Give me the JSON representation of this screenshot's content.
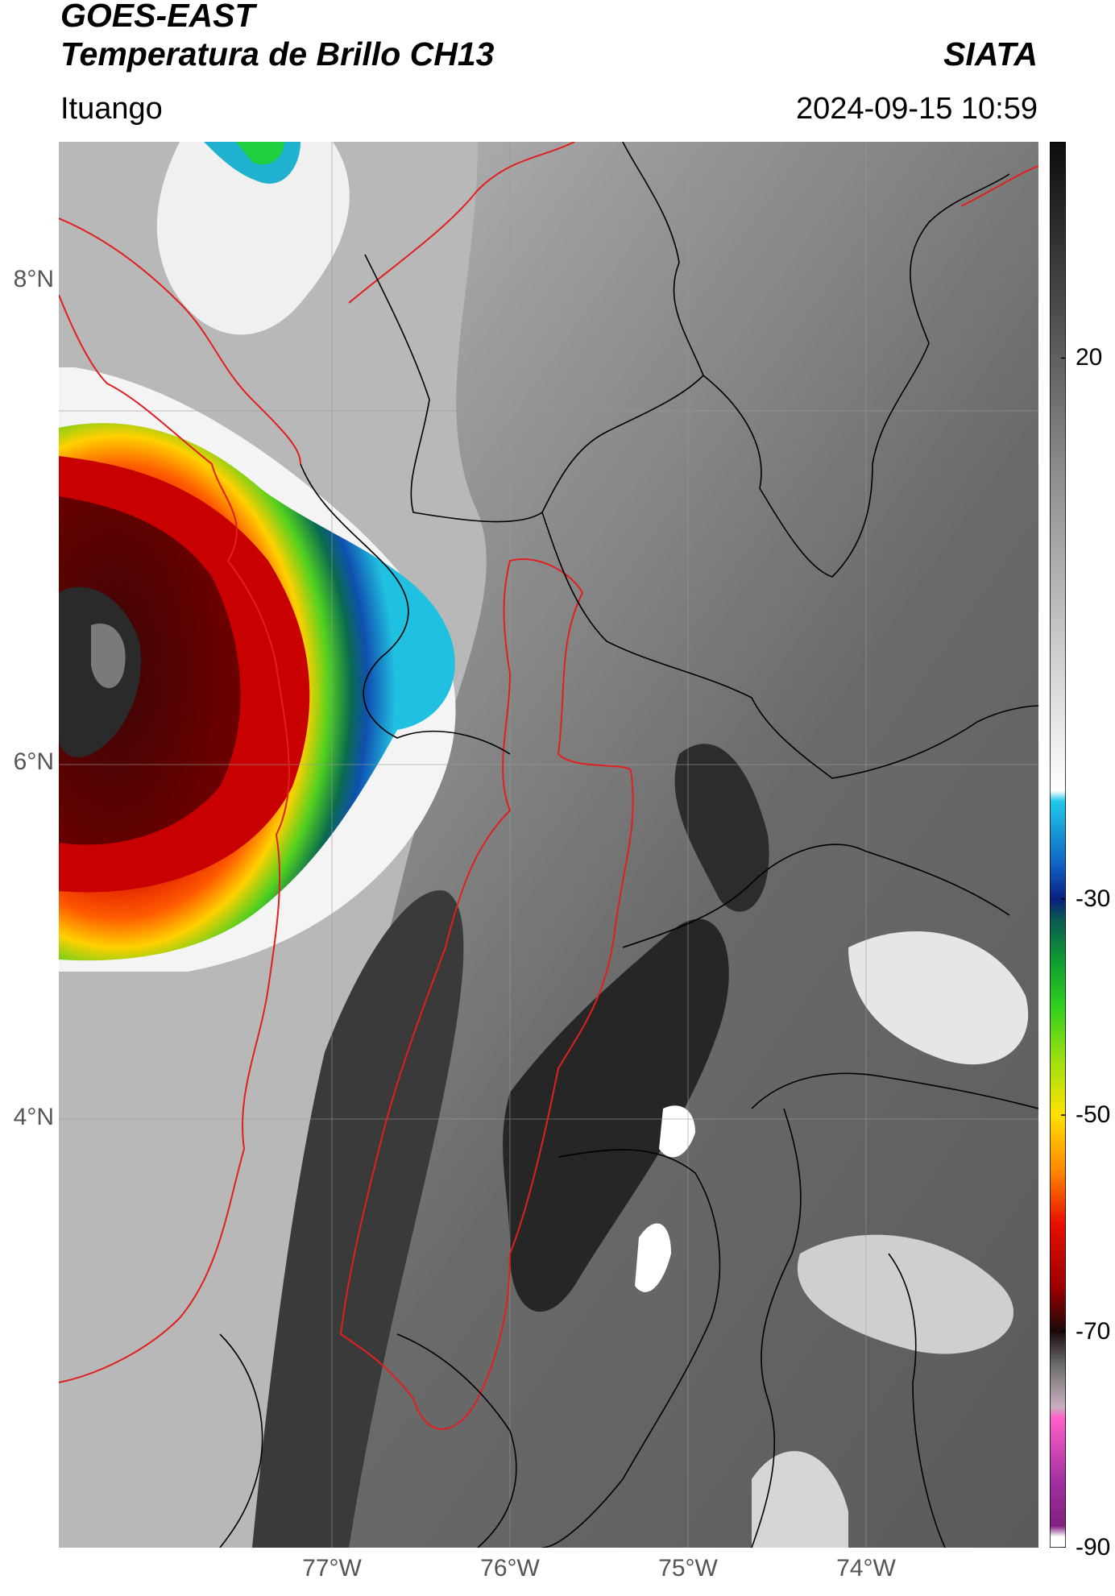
{
  "header": {
    "title_line1": "GOES-EAST",
    "title_line2": "Temperatura de Brillo CH13",
    "organization": "SIATA",
    "location": "Ituango",
    "datetime": "2024-09-15 10:59"
  },
  "map": {
    "lon_range": [
      -78.53,
      -73.03
    ],
    "lat_range": [
      1.0,
      9.5
    ],
    "lat_ticks": [
      {
        "value": 8,
        "label": "8°N"
      },
      {
        "value": 6,
        "label": "6°N"
      },
      {
        "value": 4,
        "label": "4°N"
      }
    ],
    "lon_ticks": [
      {
        "value": -77,
        "label": "77°W"
      },
      {
        "value": -76,
        "label": "76°W"
      },
      {
        "value": -75,
        "label": "75°W"
      },
      {
        "value": -74,
        "label": "74°W"
      }
    ],
    "colors": {
      "coastline": "#e02020",
      "department_borders": "#000000",
      "gridlines": "#9a9a9a"
    }
  },
  "colorbar": {
    "range": [
      -90,
      40
    ],
    "ticks": [
      {
        "value": 20,
        "label": "20"
      },
      {
        "value": -30,
        "label": "-30"
      },
      {
        "value": -50,
        "label": "-50"
      },
      {
        "value": -70,
        "label": "-70"
      },
      {
        "value": -90,
        "label": "-90"
      }
    ],
    "stops": [
      {
        "value": 40,
        "color": "#0c0c0c"
      },
      {
        "value": 25,
        "color": "#4a4a4a"
      },
      {
        "value": 10,
        "color": "#8a8a8a"
      },
      {
        "value": -10,
        "color": "#d8d8d8"
      },
      {
        "value": -20,
        "color": "#ffffff"
      },
      {
        "value": -21,
        "color": "#20c8e8"
      },
      {
        "value": -27,
        "color": "#1060c0"
      },
      {
        "value": -30,
        "color": "#0a2080"
      },
      {
        "value": -32,
        "color": "#0a5a50"
      },
      {
        "value": -36,
        "color": "#10a030"
      },
      {
        "value": -40,
        "color": "#30d020"
      },
      {
        "value": -45,
        "color": "#a0e010"
      },
      {
        "value": -50,
        "color": "#ffe000"
      },
      {
        "value": -55,
        "color": "#ff8a00"
      },
      {
        "value": -60,
        "color": "#e81000"
      },
      {
        "value": -66,
        "color": "#9a0000"
      },
      {
        "value": -70,
        "color": "#1a0a0a"
      },
      {
        "value": -73,
        "color": "#6a6a6a"
      },
      {
        "value": -77,
        "color": "#c8b0c0"
      },
      {
        "value": -78,
        "color": "#ff60c8"
      },
      {
        "value": -84,
        "color": "#a030a0"
      },
      {
        "value": -88,
        "color": "#802080"
      },
      {
        "value": -89,
        "color": "#ffffff"
      }
    ]
  }
}
